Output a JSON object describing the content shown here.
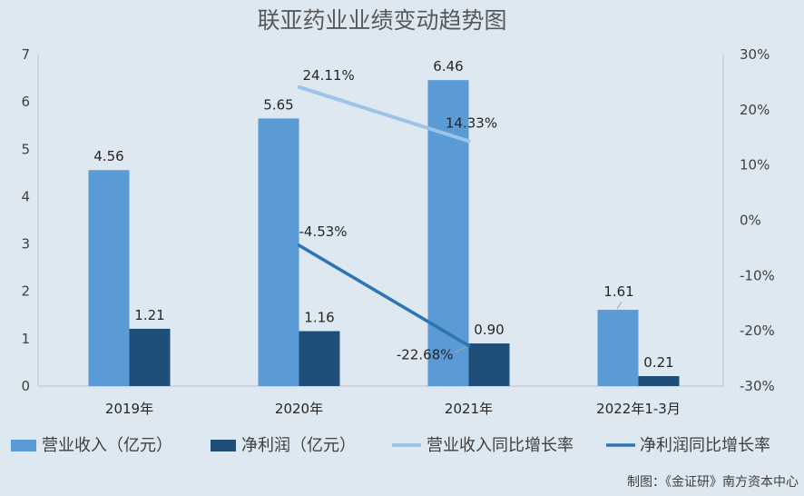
{
  "chart_data": {
    "type": "bar",
    "title": "联亚药业业绩变动趋势图",
    "categories": [
      "2019年",
      "2020年",
      "2021年",
      "2022年1-3月"
    ],
    "series": [
      {
        "name": "营业收入（亿元）",
        "type": "bar",
        "axis": "left",
        "color": "#5b9bd5",
        "values": [
          4.56,
          5.65,
          6.46,
          1.61
        ],
        "labels": [
          "4.56",
          "5.65",
          "6.46",
          "1.61"
        ]
      },
      {
        "name": "净利润（亿元）",
        "type": "bar",
        "axis": "left",
        "color": "#1f4e79",
        "values": [
          1.21,
          1.16,
          0.9,
          0.21
        ],
        "labels": [
          "1.21",
          "1.16",
          "0.90",
          "0.21"
        ]
      },
      {
        "name": "营业收入同比增长率",
        "type": "line",
        "axis": "right",
        "color": "#9dc3e6",
        "values": [
          null,
          24.11,
          14.33,
          null
        ],
        "labels": [
          null,
          "24.11%",
          "14.33%",
          null
        ]
      },
      {
        "name": "净利润同比增长率",
        "type": "line",
        "axis": "right",
        "color": "#2e75b6",
        "values": [
          null,
          -4.53,
          -22.68,
          null
        ],
        "labels": [
          null,
          "-4.53%",
          "-22.68%",
          null
        ]
      }
    ],
    "y_left": {
      "ylim": [
        0,
        7
      ],
      "ticks": [
        "0",
        "1",
        "2",
        "3",
        "4",
        "5",
        "6",
        "7"
      ]
    },
    "y_right": {
      "ylim": [
        -30,
        30
      ],
      "ticks": [
        "-30%",
        "-20%",
        "-10%",
        "0%",
        "10%",
        "20%",
        "30%"
      ]
    },
    "grid": false,
    "legend": "bottom"
  },
  "source_note": "制图：《金证研》南方资本中心"
}
